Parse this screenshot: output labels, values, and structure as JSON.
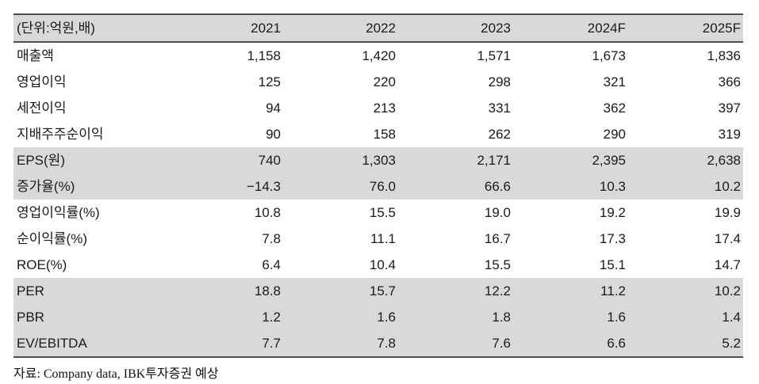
{
  "table": {
    "unit_label": "(단위:억원,배)",
    "columns": [
      "2021",
      "2022",
      "2023",
      "2024F",
      "2025F"
    ],
    "rows": [
      {
        "label": "매출액",
        "values": [
          "1,158",
          "1,420",
          "1,571",
          "1,673",
          "1,836"
        ],
        "shaded": false
      },
      {
        "label": "영업이익",
        "values": [
          "125",
          "220",
          "298",
          "321",
          "366"
        ],
        "shaded": false
      },
      {
        "label": "세전이익",
        "values": [
          "94",
          "213",
          "331",
          "362",
          "397"
        ],
        "shaded": false
      },
      {
        "label": "지배주주순이익",
        "values": [
          "90",
          "158",
          "262",
          "290",
          "319"
        ],
        "shaded": false
      },
      {
        "label": "EPS(원)",
        "values": [
          "740",
          "1,303",
          "2,171",
          "2,395",
          "2,638"
        ],
        "shaded": true
      },
      {
        "label": "증가율(%)",
        "values": [
          "−14.3",
          "76.0",
          "66.6",
          "10.3",
          "10.2"
        ],
        "shaded": true
      },
      {
        "label": "영업이익률(%)",
        "values": [
          "10.8",
          "15.5",
          "19.0",
          "19.2",
          "19.9"
        ],
        "shaded": false
      },
      {
        "label": "순이익률(%)",
        "values": [
          "7.8",
          "11.1",
          "16.7",
          "17.3",
          "17.4"
        ],
        "shaded": false
      },
      {
        "label": "ROE(%)",
        "values": [
          "6.4",
          "10.4",
          "15.5",
          "15.1",
          "14.7"
        ],
        "shaded": false
      },
      {
        "label": "PER",
        "values": [
          "18.8",
          "15.7",
          "12.2",
          "11.2",
          "10.2"
        ],
        "shaded": true
      },
      {
        "label": "PBR",
        "values": [
          "1.2",
          "1.6",
          "1.8",
          "1.6",
          "1.4"
        ],
        "shaded": true
      },
      {
        "label": "EV/EBITDA",
        "values": [
          "7.7",
          "7.8",
          "7.6",
          "6.6",
          "5.2"
        ],
        "shaded": true
      }
    ]
  },
  "footer": {
    "source": "자료: Company data, IBK투자증권 예상"
  },
  "colors": {
    "row_shade": "#d9d9d9",
    "border": "#4d4d4d",
    "text": "#1a1a1a"
  }
}
